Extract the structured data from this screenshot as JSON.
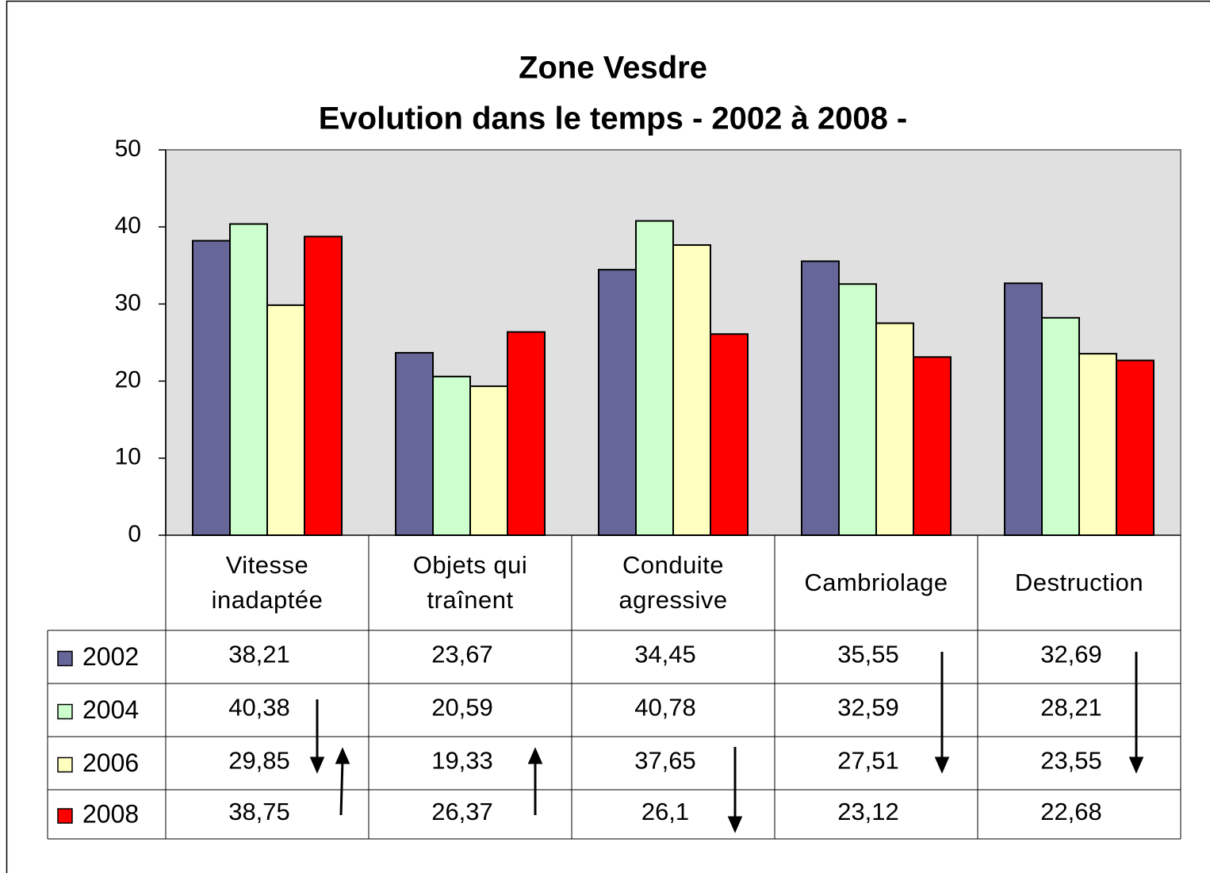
{
  "chart_data": {
    "type": "bar",
    "title": "Zone Vesdre",
    "subtitle": "Evolution dans le temps - 2002 à 2008 -",
    "categories": [
      "Vitesse inadaptée",
      "Objets qui traînent",
      "Conduite agressive",
      "Cambriolage",
      "Destruction"
    ],
    "series": [
      {
        "name": "2002",
        "color": "#666699",
        "values": [
          38.21,
          23.67,
          34.45,
          35.55,
          32.69
        ],
        "value_labels": [
          "38,21",
          "23,67",
          "34,45",
          "35,55",
          "32,69"
        ]
      },
      {
        "name": "2004",
        "color": "#ccffcc",
        "values": [
          40.38,
          20.59,
          40.78,
          32.59,
          28.21
        ],
        "value_labels": [
          "40,38",
          "20,59",
          "40,78",
          "32,59",
          "28,21"
        ]
      },
      {
        "name": "2006",
        "color": "#ffffc0",
        "values": [
          29.85,
          19.33,
          37.65,
          27.51,
          23.55
        ],
        "value_labels": [
          "29,85",
          "19,33",
          "37,65",
          "27,51",
          "23,55"
        ]
      },
      {
        "name": "2008",
        "color": "#ff0000",
        "values": [
          38.75,
          26.37,
          26.1,
          23.12,
          22.68
        ],
        "value_labels": [
          "38,75",
          "26,37",
          "26,1",
          "23,12",
          "22,68"
        ]
      }
    ],
    "ylim": [
      0,
      50
    ],
    "yticks": [
      0,
      10,
      20,
      30,
      40,
      50
    ],
    "grid": false
  }
}
